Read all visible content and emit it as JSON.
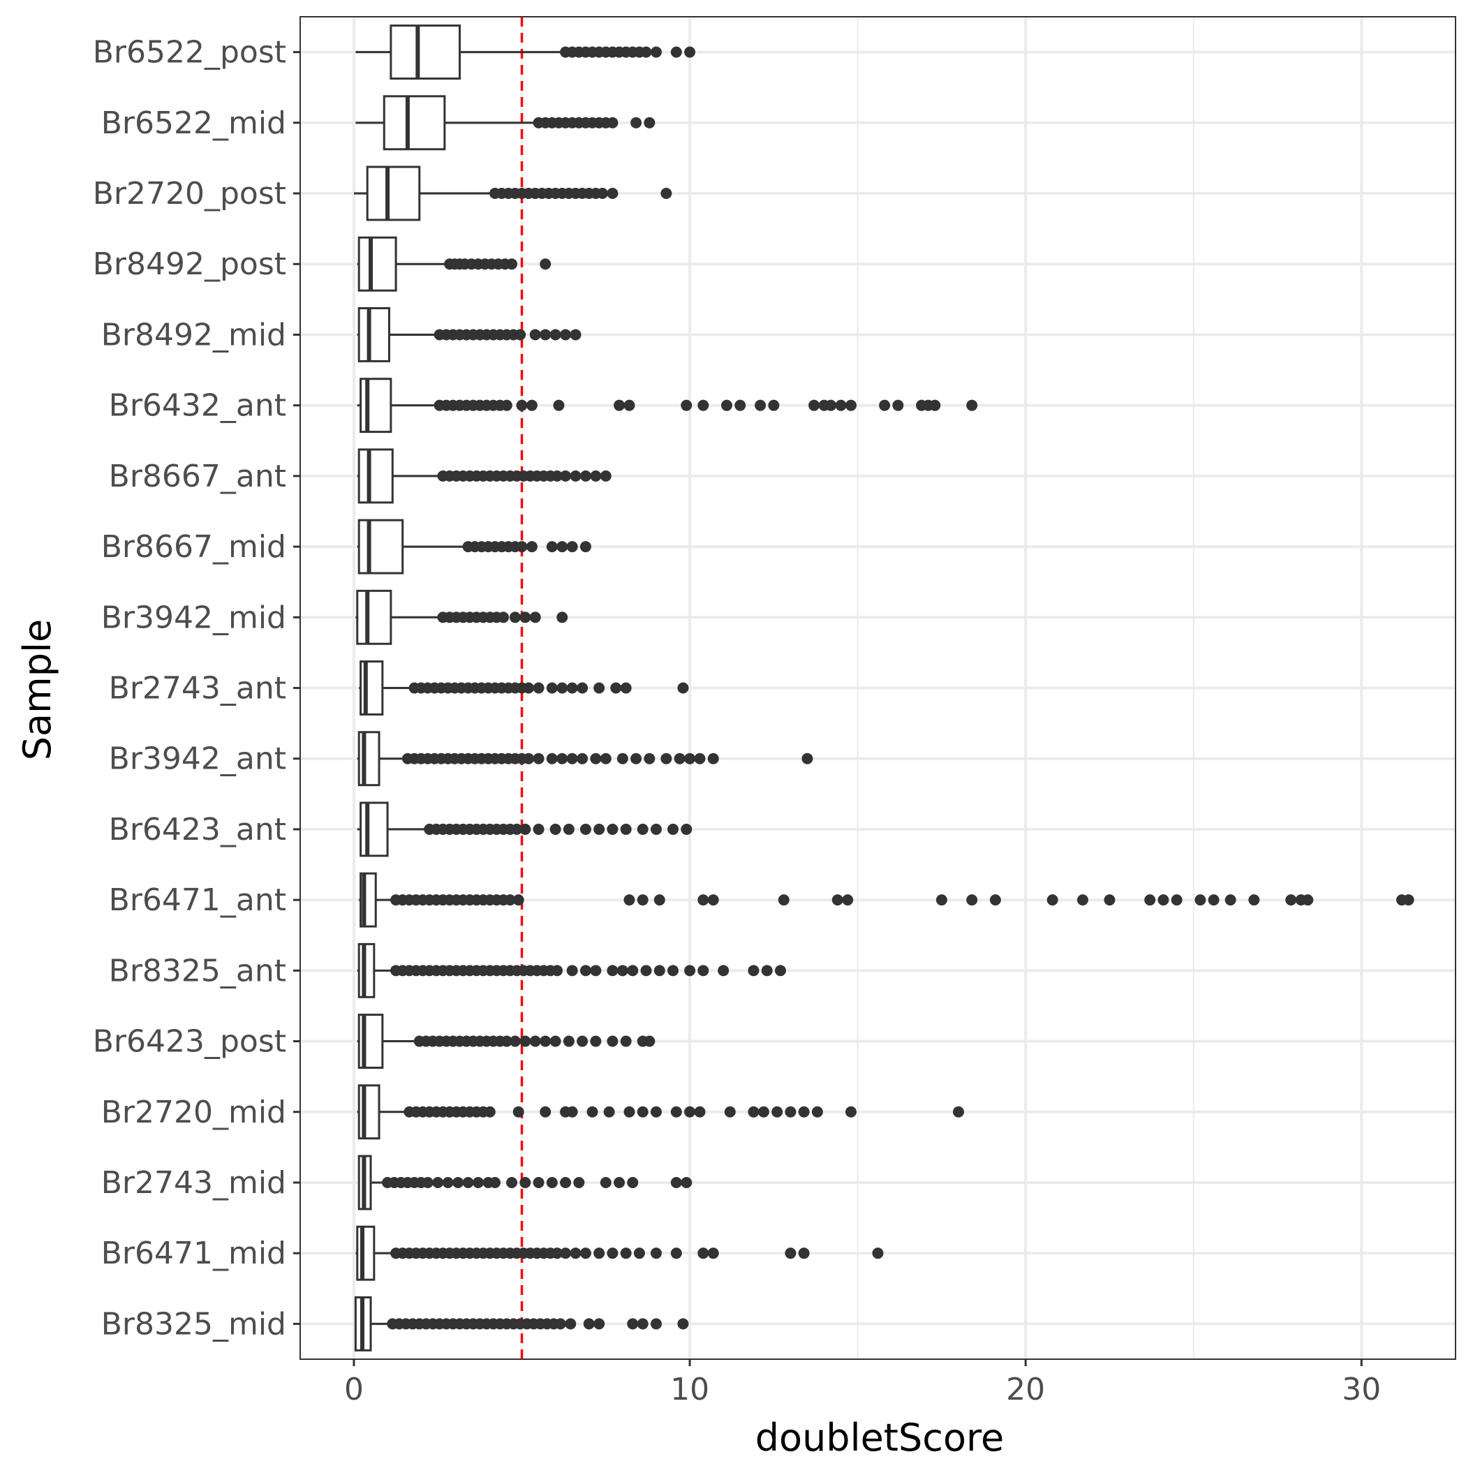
{
  "chart_data": {
    "type": "boxplot",
    "orientation": "horizontal",
    "title": "",
    "xlabel": "doubletScore",
    "ylabel": "Sample",
    "xlim": [
      -1.6,
      32.8
    ],
    "x_ticks": [
      0,
      10,
      20,
      30
    ],
    "x_tick_labels": [
      "0",
      "10",
      "20",
      "30"
    ],
    "grid": true,
    "reference_line": {
      "x": 5,
      "color": "#ff0000",
      "style": "dashed"
    },
    "categories": [
      "Br6522_post",
      "Br6522_mid",
      "Br2720_post",
      "Br8492_post",
      "Br8492_mid",
      "Br6432_ant",
      "Br8667_ant",
      "Br8667_mid",
      "Br3942_mid",
      "Br2743_ant",
      "Br3942_ant",
      "Br6423_ant",
      "Br6471_ant",
      "Br8325_ant",
      "Br6423_post",
      "Br2720_mid",
      "Br2743_mid",
      "Br6471_mid",
      "Br8325_mid"
    ],
    "boxes": [
      {
        "sample": "Br6522_post",
        "whisker_low": 0.05,
        "q1": 1.1,
        "median": 1.9,
        "q3": 3.15,
        "whisker_high": 6.2,
        "outliers": [
          6.3,
          6.5,
          6.7,
          6.9,
          7.1,
          7.3,
          7.5,
          7.7,
          7.9,
          8.1,
          8.3,
          8.5,
          8.7,
          9.0,
          9.6,
          10.0
        ]
      },
      {
        "sample": "Br6522_mid",
        "whisker_low": 0.05,
        "q1": 0.9,
        "median": 1.6,
        "q3": 2.7,
        "whisker_high": 5.4,
        "outliers": [
          5.5,
          5.7,
          5.9,
          6.1,
          6.3,
          6.5,
          6.7,
          6.9,
          7.1,
          7.3,
          7.5,
          7.7,
          8.4,
          8.8
        ]
      },
      {
        "sample": "Br2720_post",
        "whisker_low": 0.0,
        "q1": 0.4,
        "median": 1.0,
        "q3": 1.95,
        "whisker_high": 4.1,
        "outliers": [
          4.2,
          4.4,
          4.6,
          4.8,
          5.0,
          5.2,
          5.4,
          5.6,
          5.8,
          6.0,
          6.2,
          6.4,
          6.6,
          6.8,
          7.0,
          7.2,
          7.4,
          7.7,
          9.3
        ]
      },
      {
        "sample": "Br8492_post",
        "whisker_low": 0.1,
        "q1": 0.15,
        "median": 0.5,
        "q3": 1.25,
        "whisker_high": 2.75,
        "outliers": [
          2.85,
          3.0,
          3.15,
          3.3,
          3.5,
          3.7,
          3.9,
          4.1,
          4.3,
          4.5,
          4.7,
          5.7
        ]
      },
      {
        "sample": "Br8492_mid",
        "whisker_low": 0.1,
        "q1": 0.15,
        "median": 0.45,
        "q3": 1.05,
        "whisker_high": 2.45,
        "outliers": [
          2.55,
          2.75,
          2.95,
          3.15,
          3.35,
          3.55,
          3.75,
          3.95,
          4.15,
          4.35,
          4.55,
          4.75,
          4.95,
          5.4,
          5.7,
          6.0,
          6.3,
          6.6
        ]
      },
      {
        "sample": "Br6432_ant",
        "whisker_low": 0.1,
        "q1": 0.2,
        "median": 0.4,
        "q3": 1.1,
        "whisker_high": 2.45,
        "outliers": [
          2.55,
          2.75,
          2.95,
          3.15,
          3.35,
          3.55,
          3.75,
          3.95,
          4.15,
          4.35,
          4.55,
          5.0,
          5.3,
          6.1,
          7.9,
          8.2,
          9.9,
          10.4,
          11.1,
          11.5,
          12.1,
          12.5,
          13.7,
          14.0,
          14.2,
          14.5,
          14.8,
          15.8,
          16.2,
          16.9,
          17.1,
          17.3,
          18.4
        ]
      },
      {
        "sample": "Br8667_ant",
        "whisker_low": 0.1,
        "q1": 0.15,
        "median": 0.45,
        "q3": 1.15,
        "whisker_high": 2.55,
        "outliers": [
          2.65,
          2.85,
          3.05,
          3.25,
          3.45,
          3.65,
          3.85,
          4.05,
          4.25,
          4.45,
          4.65,
          4.85,
          5.05,
          5.25,
          5.45,
          5.65,
          5.85,
          6.05,
          6.3,
          6.6,
          6.9,
          7.2,
          7.5
        ]
      },
      {
        "sample": "Br8667_mid",
        "whisker_low": 0.1,
        "q1": 0.15,
        "median": 0.45,
        "q3": 1.45,
        "whisker_high": 3.3,
        "outliers": [
          3.4,
          3.6,
          3.8,
          4.0,
          4.2,
          4.4,
          4.6,
          4.8,
          5.0,
          5.3,
          5.9,
          6.2,
          6.5,
          6.9
        ]
      },
      {
        "sample": "Br3942_mid",
        "whisker_low": 0.05,
        "q1": 0.1,
        "median": 0.4,
        "q3": 1.1,
        "whisker_high": 2.55,
        "outliers": [
          2.65,
          2.85,
          3.05,
          3.25,
          3.45,
          3.65,
          3.85,
          4.05,
          4.25,
          4.45,
          4.8,
          5.1,
          5.4,
          6.2
        ]
      },
      {
        "sample": "Br2743_ant",
        "whisker_low": 0.15,
        "q1": 0.2,
        "median": 0.35,
        "q3": 0.85,
        "whisker_high": 1.7,
        "outliers": [
          1.8,
          2.0,
          2.2,
          2.4,
          2.6,
          2.8,
          3.0,
          3.2,
          3.4,
          3.6,
          3.8,
          4.0,
          4.2,
          4.4,
          4.6,
          4.8,
          5.0,
          5.2,
          5.5,
          5.9,
          6.2,
          6.5,
          6.8,
          7.3,
          7.8,
          8.1,
          9.8
        ]
      },
      {
        "sample": "Br3942_ant",
        "whisker_low": 0.1,
        "q1": 0.15,
        "median": 0.3,
        "q3": 0.75,
        "whisker_high": 1.5,
        "outliers": [
          1.6,
          1.8,
          2.0,
          2.2,
          2.4,
          2.6,
          2.8,
          3.0,
          3.2,
          3.4,
          3.6,
          3.8,
          4.0,
          4.2,
          4.4,
          4.6,
          4.8,
          5.0,
          5.2,
          5.5,
          5.9,
          6.2,
          6.5,
          6.8,
          7.2,
          7.5,
          8.0,
          8.4,
          8.8,
          9.3,
          9.7,
          10.0,
          10.3,
          10.7,
          13.5
        ]
      },
      {
        "sample": "Br6423_ant",
        "whisker_low": 0.1,
        "q1": 0.2,
        "median": 0.4,
        "q3": 1.0,
        "whisker_high": 2.15,
        "outliers": [
          2.25,
          2.45,
          2.65,
          2.85,
          3.05,
          3.25,
          3.45,
          3.65,
          3.85,
          4.05,
          4.25,
          4.45,
          4.65,
          4.85,
          5.1,
          5.5,
          6.0,
          6.4,
          6.9,
          7.3,
          7.7,
          8.1,
          8.6,
          9.0,
          9.5,
          9.9
        ]
      },
      {
        "sample": "Br6471_ant",
        "whisker_low": 0.15,
        "q1": 0.2,
        "median": 0.3,
        "q3": 0.65,
        "whisker_high": 1.15,
        "outliers": [
          1.25,
          1.45,
          1.65,
          1.85,
          2.05,
          2.25,
          2.45,
          2.65,
          2.85,
          3.05,
          3.25,
          3.45,
          3.65,
          3.85,
          4.05,
          4.25,
          4.45,
          4.65,
          4.9,
          8.2,
          8.6,
          9.1,
          10.4,
          10.7,
          12.8,
          14.4,
          14.7,
          17.5,
          18.4,
          19.1,
          20.8,
          21.7,
          22.5,
          23.7,
          24.1,
          24.5,
          25.2,
          25.6,
          26.1,
          26.8,
          27.9,
          28.2,
          28.4,
          31.2,
          31.4
        ]
      },
      {
        "sample": "Br8325_ant",
        "whisker_low": 0.1,
        "q1": 0.15,
        "median": 0.3,
        "q3": 0.6,
        "whisker_high": 1.15,
        "outliers": [
          1.25,
          1.45,
          1.65,
          1.85,
          2.05,
          2.25,
          2.45,
          2.65,
          2.85,
          3.05,
          3.25,
          3.45,
          3.65,
          3.85,
          4.05,
          4.25,
          4.45,
          4.65,
          4.85,
          5.05,
          5.25,
          5.45,
          5.65,
          5.85,
          6.05,
          6.5,
          6.9,
          7.2,
          7.7,
          8.0,
          8.3,
          8.7,
          9.1,
          9.5,
          10.0,
          10.4,
          11.0,
          11.9,
          12.3,
          12.7
        ]
      },
      {
        "sample": "Br6423_post",
        "whisker_low": 0.1,
        "q1": 0.15,
        "median": 0.3,
        "q3": 0.85,
        "whisker_high": 1.85,
        "outliers": [
          1.95,
          2.15,
          2.35,
          2.55,
          2.75,
          2.95,
          3.15,
          3.35,
          3.55,
          3.75,
          3.95,
          4.15,
          4.35,
          4.55,
          4.8,
          5.1,
          5.4,
          5.7,
          6.0,
          6.4,
          6.8,
          7.2,
          7.7,
          8.1,
          8.6,
          8.8
        ]
      },
      {
        "sample": "Br2720_mid",
        "whisker_low": 0.1,
        "q1": 0.15,
        "median": 0.3,
        "q3": 0.75,
        "whisker_high": 1.55,
        "outliers": [
          1.65,
          1.85,
          2.05,
          2.25,
          2.45,
          2.65,
          2.85,
          3.05,
          3.25,
          3.45,
          3.65,
          3.85,
          4.05,
          4.9,
          5.7,
          6.3,
          6.5,
          7.1,
          7.6,
          8.2,
          8.6,
          9.0,
          9.6,
          10.0,
          10.3,
          11.2,
          11.9,
          12.2,
          12.6,
          13.0,
          13.4,
          13.8,
          14.8,
          18.0
        ]
      },
      {
        "sample": "Br2743_mid",
        "whisker_low": 0.15,
        "q1": 0.15,
        "median": 0.3,
        "q3": 0.5,
        "whisker_high": 0.9,
        "outliers": [
          1.0,
          1.2,
          1.4,
          1.6,
          1.8,
          2.0,
          2.2,
          2.5,
          2.8,
          3.1,
          3.4,
          3.7,
          4.0,
          4.2,
          4.7,
          5.1,
          5.5,
          5.9,
          6.3,
          6.7,
          7.5,
          7.9,
          8.3,
          9.6,
          9.9
        ]
      },
      {
        "sample": "Br6471_mid",
        "whisker_low": 0.05,
        "q1": 0.1,
        "median": 0.25,
        "q3": 0.6,
        "whisker_high": 1.15,
        "outliers": [
          1.25,
          1.45,
          1.65,
          1.85,
          2.05,
          2.25,
          2.45,
          2.65,
          2.85,
          3.05,
          3.25,
          3.45,
          3.65,
          3.85,
          4.05,
          4.25,
          4.45,
          4.65,
          4.85,
          5.05,
          5.25,
          5.45,
          5.65,
          5.85,
          6.05,
          6.3,
          6.6,
          6.9,
          7.3,
          7.7,
          8.1,
          8.5,
          9.0,
          9.6,
          10.4,
          10.7,
          13.0,
          13.4,
          15.6
        ]
      },
      {
        "sample": "Br8325_mid",
        "whisker_low": 0.05,
        "q1": 0.05,
        "median": 0.25,
        "q3": 0.5,
        "whisker_high": 1.05,
        "outliers": [
          1.15,
          1.35,
          1.55,
          1.75,
          1.95,
          2.15,
          2.35,
          2.55,
          2.75,
          2.95,
          3.15,
          3.35,
          3.55,
          3.75,
          3.95,
          4.15,
          4.35,
          4.55,
          4.75,
          4.95,
          5.15,
          5.35,
          5.55,
          5.75,
          5.95,
          6.15,
          6.45,
          7.0,
          7.3,
          8.3,
          8.6,
          9.0,
          9.8
        ]
      }
    ],
    "colors": {
      "box_stroke": "#333333",
      "box_fill": "#ffffff",
      "outlier": "#333333",
      "grid": "#ebebeb",
      "panel_border": "#333333",
      "reference_line": "#ff0000"
    }
  }
}
